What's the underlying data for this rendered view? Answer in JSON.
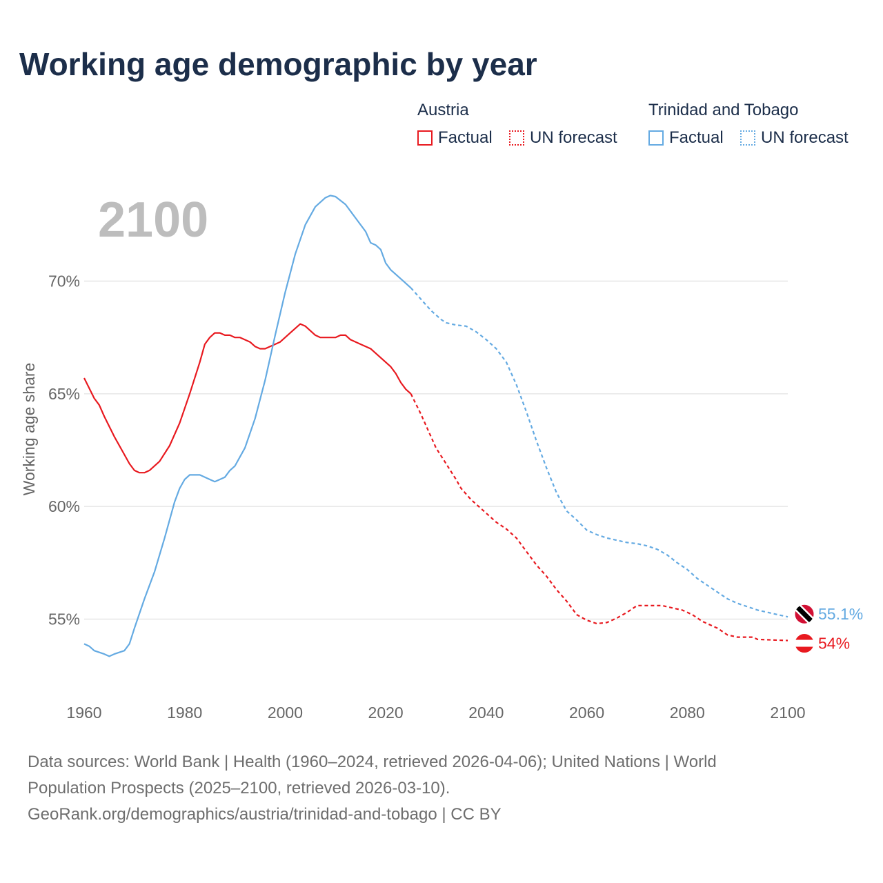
{
  "title": "Working age demographic by year",
  "legend": {
    "groups": [
      {
        "name": "Austria",
        "factual_label": "Factual",
        "forecast_label": "UN forecast",
        "color": "#e8191f"
      },
      {
        "name": "Trinidad and Tobago",
        "factual_label": "Factual",
        "forecast_label": "UN forecast",
        "color": "#64aae2"
      }
    ]
  },
  "footer": {
    "line1": "Data sources: World Bank | Health (1960–2024, retrieved 2026-04-06); United Nations | World",
    "line2": "Population Prospects (2025–2100, retrieved 2026-03-10).",
    "line3": "GeoRank.org/demographics/austria/trinidad-and-tobago | CC BY"
  },
  "chart_data": {
    "type": "line",
    "year_label": "2100",
    "ylabel": "Working age share",
    "xlim": [
      1960,
      2100
    ],
    "ylim": [
      52.5,
      74
    ],
    "x_ticks": [
      1960,
      1980,
      2000,
      2020,
      2040,
      2060,
      2080,
      2100
    ],
    "x_tick_labels": [
      "1960",
      "1980",
      "2000",
      "2020",
      "2040",
      "2060",
      "2080",
      "2100"
    ],
    "y_ticks": [
      55,
      60,
      65,
      70
    ],
    "y_tick_labels": [
      "55%",
      "60%",
      "65%",
      "70%"
    ],
    "grid": true,
    "factual_end": 2025,
    "series": [
      {
        "name": "Austria",
        "color": "#e8191f",
        "end_label": "54%",
        "flag_colors": [
          "#e8191f",
          "#ffffff",
          "#e8191f"
        ],
        "points": [
          [
            1960,
            65.7
          ],
          [
            1962,
            64.8
          ],
          [
            1963,
            64.5
          ],
          [
            1964,
            64.0
          ],
          [
            1966,
            63.1
          ],
          [
            1968,
            62.3
          ],
          [
            1969,
            61.9
          ],
          [
            1970,
            61.6
          ],
          [
            1971,
            61.5
          ],
          [
            1972,
            61.5
          ],
          [
            1973,
            61.6
          ],
          [
            1975,
            62.0
          ],
          [
            1977,
            62.7
          ],
          [
            1979,
            63.7
          ],
          [
            1981,
            65.0
          ],
          [
            1983,
            66.4
          ],
          [
            1984,
            67.2
          ],
          [
            1985,
            67.5
          ],
          [
            1986,
            67.7
          ],
          [
            1987,
            67.7
          ],
          [
            1988,
            67.6
          ],
          [
            1989,
            67.6
          ],
          [
            1990,
            67.5
          ],
          [
            1991,
            67.5
          ],
          [
            1993,
            67.3
          ],
          [
            1994,
            67.1
          ],
          [
            1995,
            67.0
          ],
          [
            1996,
            67.0
          ],
          [
            1997,
            67.1
          ],
          [
            1999,
            67.3
          ],
          [
            2001,
            67.7
          ],
          [
            2003,
            68.1
          ],
          [
            2004,
            68.0
          ],
          [
            2006,
            67.6
          ],
          [
            2007,
            67.5
          ],
          [
            2010,
            67.5
          ],
          [
            2011,
            67.6
          ],
          [
            2012,
            67.6
          ],
          [
            2013,
            67.4
          ],
          [
            2015,
            67.2
          ],
          [
            2017,
            67.0
          ],
          [
            2019,
            66.6
          ],
          [
            2021,
            66.2
          ],
          [
            2022,
            65.9
          ],
          [
            2023,
            65.5
          ],
          [
            2024,
            65.2
          ],
          [
            2025,
            65.0
          ],
          [
            2027,
            64.1
          ],
          [
            2029,
            63.1
          ],
          [
            2030,
            62.6
          ],
          [
            2032,
            61.9
          ],
          [
            2034,
            61.2
          ],
          [
            2035,
            60.8
          ],
          [
            2037,
            60.3
          ],
          [
            2040,
            59.7
          ],
          [
            2042,
            59.3
          ],
          [
            2044,
            59.0
          ],
          [
            2046,
            58.6
          ],
          [
            2048,
            58.0
          ],
          [
            2050,
            57.4
          ],
          [
            2052,
            56.9
          ],
          [
            2054,
            56.3
          ],
          [
            2056,
            55.8
          ],
          [
            2058,
            55.2
          ],
          [
            2060,
            54.95
          ],
          [
            2062,
            54.8
          ],
          [
            2064,
            54.85
          ],
          [
            2066,
            55.05
          ],
          [
            2068,
            55.3
          ],
          [
            2070,
            55.6
          ],
          [
            2075,
            55.6
          ],
          [
            2077,
            55.5
          ],
          [
            2079,
            55.4
          ],
          [
            2081,
            55.2
          ],
          [
            2083,
            54.9
          ],
          [
            2086,
            54.6
          ],
          [
            2088,
            54.3
          ],
          [
            2090,
            54.2
          ],
          [
            2093,
            54.2
          ],
          [
            2094,
            54.1
          ],
          [
            2100,
            54.05
          ]
        ]
      },
      {
        "name": "Trinidad and Tobago",
        "color": "#64aae2",
        "end_label": "55.1%",
        "flag_colors": [
          "#d21034",
          "#ffffff",
          "#000000"
        ],
        "points": [
          [
            1960,
            53.9
          ],
          [
            1961,
            53.8
          ],
          [
            1962,
            53.6
          ],
          [
            1964,
            53.45
          ],
          [
            1965,
            53.35
          ],
          [
            1966,
            53.45
          ],
          [
            1968,
            53.6
          ],
          [
            1969,
            53.9
          ],
          [
            1970,
            54.6
          ],
          [
            1972,
            55.9
          ],
          [
            1974,
            57.1
          ],
          [
            1976,
            58.6
          ],
          [
            1978,
            60.2
          ],
          [
            1979,
            60.8
          ],
          [
            1980,
            61.2
          ],
          [
            1981,
            61.4
          ],
          [
            1983,
            61.4
          ],
          [
            1985,
            61.2
          ],
          [
            1986,
            61.1
          ],
          [
            1988,
            61.3
          ],
          [
            1989,
            61.6
          ],
          [
            1990,
            61.8
          ],
          [
            1992,
            62.6
          ],
          [
            1994,
            63.9
          ],
          [
            1996,
            65.6
          ],
          [
            1998,
            67.6
          ],
          [
            2000,
            69.5
          ],
          [
            2002,
            71.2
          ],
          [
            2004,
            72.5
          ],
          [
            2006,
            73.3
          ],
          [
            2008,
            73.7
          ],
          [
            2009,
            73.8
          ],
          [
            2010,
            73.75
          ],
          [
            2012,
            73.4
          ],
          [
            2014,
            72.8
          ],
          [
            2016,
            72.2
          ],
          [
            2017,
            71.7
          ],
          [
            2018,
            71.6
          ],
          [
            2019,
            71.4
          ],
          [
            2020,
            70.8
          ],
          [
            2021,
            70.5
          ],
          [
            2023,
            70.1
          ],
          [
            2025,
            69.7
          ],
          [
            2027,
            69.2
          ],
          [
            2029,
            68.7
          ],
          [
            2031,
            68.3
          ],
          [
            2032,
            68.15
          ],
          [
            2034,
            68.05
          ],
          [
            2036,
            68.0
          ],
          [
            2038,
            67.75
          ],
          [
            2040,
            67.4
          ],
          [
            2042,
            67.0
          ],
          [
            2044,
            66.4
          ],
          [
            2046,
            65.4
          ],
          [
            2048,
            64.2
          ],
          [
            2050,
            62.9
          ],
          [
            2052,
            61.7
          ],
          [
            2054,
            60.6
          ],
          [
            2056,
            59.8
          ],
          [
            2058,
            59.4
          ],
          [
            2060,
            58.95
          ],
          [
            2062,
            58.75
          ],
          [
            2064,
            58.6
          ],
          [
            2066,
            58.5
          ],
          [
            2068,
            58.4
          ],
          [
            2070,
            58.35
          ],
          [
            2072,
            58.25
          ],
          [
            2074,
            58.1
          ],
          [
            2076,
            57.85
          ],
          [
            2078,
            57.5
          ],
          [
            2080,
            57.2
          ],
          [
            2082,
            56.8
          ],
          [
            2084,
            56.5
          ],
          [
            2086,
            56.2
          ],
          [
            2088,
            55.9
          ],
          [
            2090,
            55.7
          ],
          [
            2092,
            55.55
          ],
          [
            2094,
            55.4
          ],
          [
            2096,
            55.3
          ],
          [
            2098,
            55.2
          ],
          [
            2100,
            55.1
          ]
        ]
      }
    ]
  }
}
